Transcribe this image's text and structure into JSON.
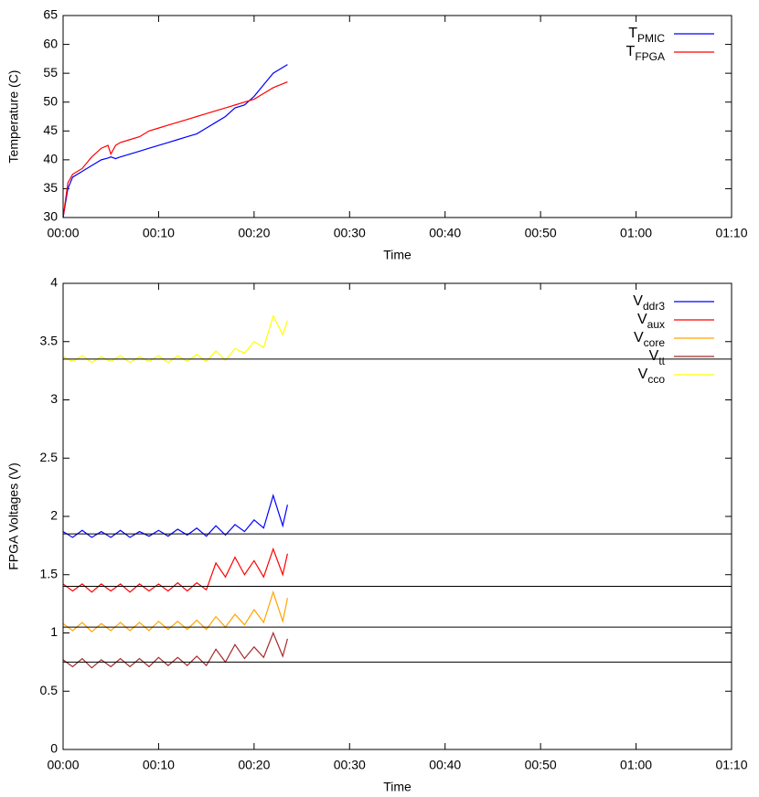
{
  "chart_data": [
    {
      "type": "line",
      "xlabel": "Time",
      "ylabel": "Temperature (C)",
      "xlim": [
        0,
        70
      ],
      "xticks": [
        {
          "value": 0,
          "label": "00:00"
        },
        {
          "value": 10,
          "label": "00:10"
        },
        {
          "value": 20,
          "label": "00:20"
        },
        {
          "value": 30,
          "label": "00:30"
        },
        {
          "value": 40,
          "label": "00:40"
        },
        {
          "value": 50,
          "label": "00:50"
        },
        {
          "value": 60,
          "label": "01:00"
        },
        {
          "value": 70,
          "label": "01:10"
        }
      ],
      "ylim": [
        30,
        65
      ],
      "yticks": [
        30,
        35,
        40,
        45,
        50,
        55,
        60,
        65
      ],
      "legend": "top right",
      "x": [
        0,
        0.5,
        1,
        2,
        3,
        4,
        4.7,
        5,
        5.5,
        6,
        7,
        8,
        9,
        10,
        11,
        12,
        13,
        14,
        15,
        16,
        17,
        18,
        19,
        20,
        21,
        22,
        23.5
      ],
      "series": [
        {
          "name": "T",
          "name_sub": "PMIC",
          "color": "#0000ff",
          "values": [
            30,
            35,
            37,
            38,
            39,
            40,
            40.3,
            40.5,
            40.2,
            40.5,
            41,
            41.5,
            42,
            42.5,
            43,
            43.5,
            44,
            44.5,
            45.5,
            46.5,
            47.5,
            49,
            49.5,
            51,
            53,
            55,
            56.5
          ]
        },
        {
          "name": "T",
          "name_sub": "FPGA",
          "color": "#ff0000",
          "values": [
            30,
            36,
            37.5,
            38.5,
            40.5,
            42,
            42.5,
            41,
            42.5,
            43,
            43.5,
            44,
            45,
            45.5,
            46,
            46.5,
            47,
            47.5,
            48,
            48.5,
            49,
            49.5,
            50,
            50.5,
            51.5,
            52.5,
            53.5
          ]
        }
      ]
    },
    {
      "type": "line",
      "xlabel": "Time",
      "ylabel": "FPGA Voltages (V)",
      "xlim": [
        0,
        70
      ],
      "xticks": [
        {
          "value": 0,
          "label": "00:00"
        },
        {
          "value": 10,
          "label": "00:10"
        },
        {
          "value": 20,
          "label": "00:20"
        },
        {
          "value": 30,
          "label": "00:30"
        },
        {
          "value": 40,
          "label": "00:40"
        },
        {
          "value": 50,
          "label": "00:50"
        },
        {
          "value": 60,
          "label": "01:00"
        },
        {
          "value": 70,
          "label": "01:10"
        }
      ],
      "ylim": [
        0,
        4
      ],
      "yticks": [
        0,
        0.5,
        1,
        1.5,
        2,
        2.5,
        3,
        3.5,
        4
      ],
      "legend": "top right",
      "reference_lines": [
        3.35,
        1.85,
        1.4,
        1.05,
        0.75
      ],
      "reference_line_color": "#000000",
      "x": [
        0,
        1,
        2,
        3,
        4,
        5,
        6,
        7,
        8,
        9,
        10,
        11,
        12,
        13,
        14,
        15,
        16,
        17,
        18,
        19,
        20,
        21,
        22,
        23,
        23.5
      ],
      "series": [
        {
          "name": "V",
          "name_sub": "ddr3",
          "color": "#0000ff",
          "values": [
            1.87,
            1.82,
            1.88,
            1.82,
            1.87,
            1.82,
            1.88,
            1.82,
            1.87,
            1.83,
            1.88,
            1.83,
            1.89,
            1.84,
            1.9,
            1.83,
            1.92,
            1.84,
            1.93,
            1.87,
            1.97,
            1.9,
            2.18,
            1.92,
            2.1
          ]
        },
        {
          "name": "V",
          "name_sub": "aux",
          "color": "#ff0000",
          "values": [
            1.42,
            1.36,
            1.42,
            1.35,
            1.42,
            1.36,
            1.42,
            1.35,
            1.42,
            1.36,
            1.42,
            1.36,
            1.43,
            1.36,
            1.43,
            1.37,
            1.6,
            1.48,
            1.65,
            1.5,
            1.62,
            1.48,
            1.72,
            1.5,
            1.68
          ]
        },
        {
          "name": "V",
          "name_sub": "core",
          "color": "#ffa500",
          "values": [
            1.08,
            1.02,
            1.09,
            1.01,
            1.08,
            1.02,
            1.09,
            1.02,
            1.09,
            1.02,
            1.1,
            1.03,
            1.1,
            1.03,
            1.11,
            1.03,
            1.14,
            1.05,
            1.16,
            1.07,
            1.2,
            1.09,
            1.35,
            1.1,
            1.3
          ]
        },
        {
          "name": "V",
          "name_sub": "tt",
          "color": "#a52a2a",
          "values": [
            0.77,
            0.71,
            0.78,
            0.7,
            0.77,
            0.71,
            0.78,
            0.71,
            0.78,
            0.71,
            0.79,
            0.72,
            0.79,
            0.72,
            0.8,
            0.72,
            0.86,
            0.75,
            0.9,
            0.78,
            0.88,
            0.79,
            1.0,
            0.8,
            0.95
          ]
        },
        {
          "name": "V",
          "name_sub": "cco",
          "color": "#ffff00",
          "values": [
            3.37,
            3.33,
            3.38,
            3.32,
            3.37,
            3.33,
            3.38,
            3.32,
            3.37,
            3.33,
            3.38,
            3.32,
            3.38,
            3.33,
            3.39,
            3.33,
            3.42,
            3.34,
            3.44,
            3.4,
            3.5,
            3.45,
            3.72,
            3.56,
            3.68
          ]
        }
      ]
    }
  ]
}
